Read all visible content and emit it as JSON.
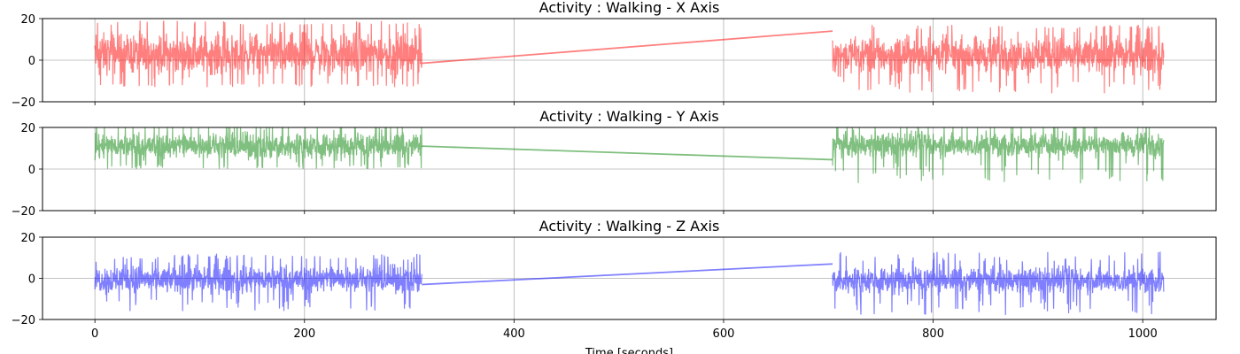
{
  "chart_data": [
    {
      "type": "line",
      "title": "Activity : Walking - X Axis",
      "axis": "X",
      "color": "#ff0000",
      "alpha": 0.5,
      "xlim": [
        -50,
        1070
      ],
      "ylim": [
        -20,
        20
      ],
      "xticks": [
        0,
        200,
        400,
        600,
        800,
        1000
      ],
      "yticks": [
        -20,
        0,
        20
      ],
      "show_xtick_labels": false,
      "grid": true,
      "segments": [
        {
          "x_start": 0,
          "x_end": 312,
          "center": 2,
          "band_low": -11,
          "band_high": 17,
          "spike_low": -13,
          "spike_high": 19
        },
        {
          "x_start": 704,
          "x_end": 1020,
          "center": 1,
          "band_low": -10,
          "band_high": 15,
          "spike_low": -16,
          "spike_high": 17
        }
      ],
      "bridge": {
        "x": [
          312,
          704
        ],
        "y": [
          -1.5,
          14
        ]
      }
    },
    {
      "type": "line",
      "title": "Activity : Walking - Y Axis",
      "axis": "Y",
      "color": "#008000",
      "alpha": 0.5,
      "xlim": [
        -50,
        1070
      ],
      "ylim": [
        -20,
        20
      ],
      "xticks": [
        0,
        200,
        400,
        600,
        800,
        1000
      ],
      "yticks": [
        -20,
        0,
        20
      ],
      "show_xtick_labels": false,
      "grid": true,
      "segments": [
        {
          "x_start": 0,
          "x_end": 312,
          "center": 12,
          "band_low": 2,
          "band_high": 20,
          "spike_low": 0,
          "spike_high": 20
        },
        {
          "x_start": 704,
          "x_end": 1020,
          "center": 12,
          "band_low": 3,
          "band_high": 20,
          "spike_low": -7,
          "spike_high": 20
        }
      ],
      "bridge": {
        "x": [
          312,
          704
        ],
        "y": [
          11,
          4.5
        ]
      }
    },
    {
      "type": "line",
      "title": "Activity : Walking - Z Axis",
      "axis": "Z",
      "color": "#0000ff",
      "alpha": 0.5,
      "xlim": [
        -50,
        1070
      ],
      "ylim": [
        -20,
        20
      ],
      "xticks": [
        0,
        200,
        400,
        600,
        800,
        1000
      ],
      "yticks": [
        -20,
        0,
        20
      ],
      "show_xtick_labels": true,
      "xlabel": "Time [seconds]",
      "grid": true,
      "segments": [
        {
          "x_start": 0,
          "x_end": 312,
          "center": 0,
          "band_low": -10,
          "band_high": 9,
          "spike_low": -16,
          "spike_high": 12
        },
        {
          "x_start": 704,
          "x_end": 1020,
          "center": -1,
          "band_low": -10,
          "band_high": 8,
          "spike_low": -18,
          "spike_high": 13
        }
      ],
      "bridge": {
        "x": [
          312,
          704
        ],
        "y": [
          -3,
          7
        ]
      }
    }
  ]
}
